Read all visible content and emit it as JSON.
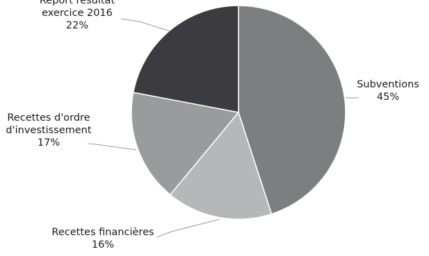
{
  "chart_data": {
    "type": "pie",
    "title": "",
    "slices": [
      {
        "label_lines": [
          "Subventions"
        ],
        "value_label": "45%",
        "value": 45,
        "color": "#7d7e80"
      },
      {
        "label_lines": [
          "Recettes financières"
        ],
        "value_label": "16%",
        "value": 16,
        "color": "#b6b7b9"
      },
      {
        "label_lines": [
          "Recettes d'ordre",
          "d'investissement"
        ],
        "value_label": "17%",
        "value": 17,
        "color": "#9a9b9d"
      },
      {
        "label_lines": [
          "Report résultat",
          "exercice 2016"
        ],
        "value_label": "22%",
        "value": 22,
        "color": "#3b3b40"
      }
    ],
    "start_angle_deg": 0,
    "direction": "clockwise",
    "legend": "none"
  }
}
